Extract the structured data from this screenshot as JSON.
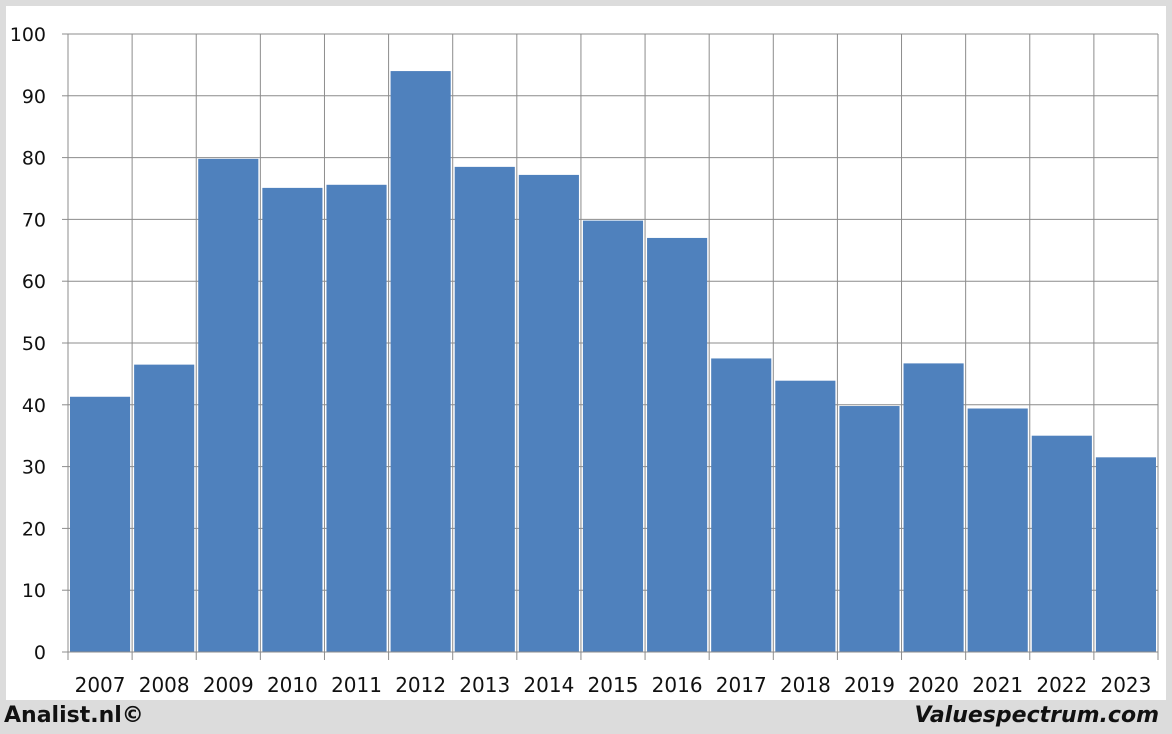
{
  "chart_data": {
    "type": "bar",
    "categories": [
      "2007",
      "2008",
      "2009",
      "2010",
      "2011",
      "2012",
      "2013",
      "2014",
      "2015",
      "2016",
      "2017",
      "2018",
      "2019",
      "2020",
      "2021",
      "2022",
      "2023"
    ],
    "values": [
      41.3,
      46.5,
      79.8,
      75.1,
      75.6,
      94.0,
      78.5,
      77.2,
      69.8,
      67.0,
      47.5,
      43.9,
      39.8,
      46.7,
      39.4,
      35.0,
      31.5
    ],
    "ylim": [
      0,
      100
    ],
    "yticks": [
      "0",
      "10",
      "20",
      "30",
      "40",
      "50",
      "60",
      "70",
      "80",
      "90",
      "100"
    ],
    "grid": true,
    "bar_color": "#4f81bd",
    "title": "",
    "xlabel": "",
    "ylabel": ""
  },
  "footer": {
    "left_brand": "Analist.nl©",
    "right_brand": "Valuespectrum.com"
  }
}
